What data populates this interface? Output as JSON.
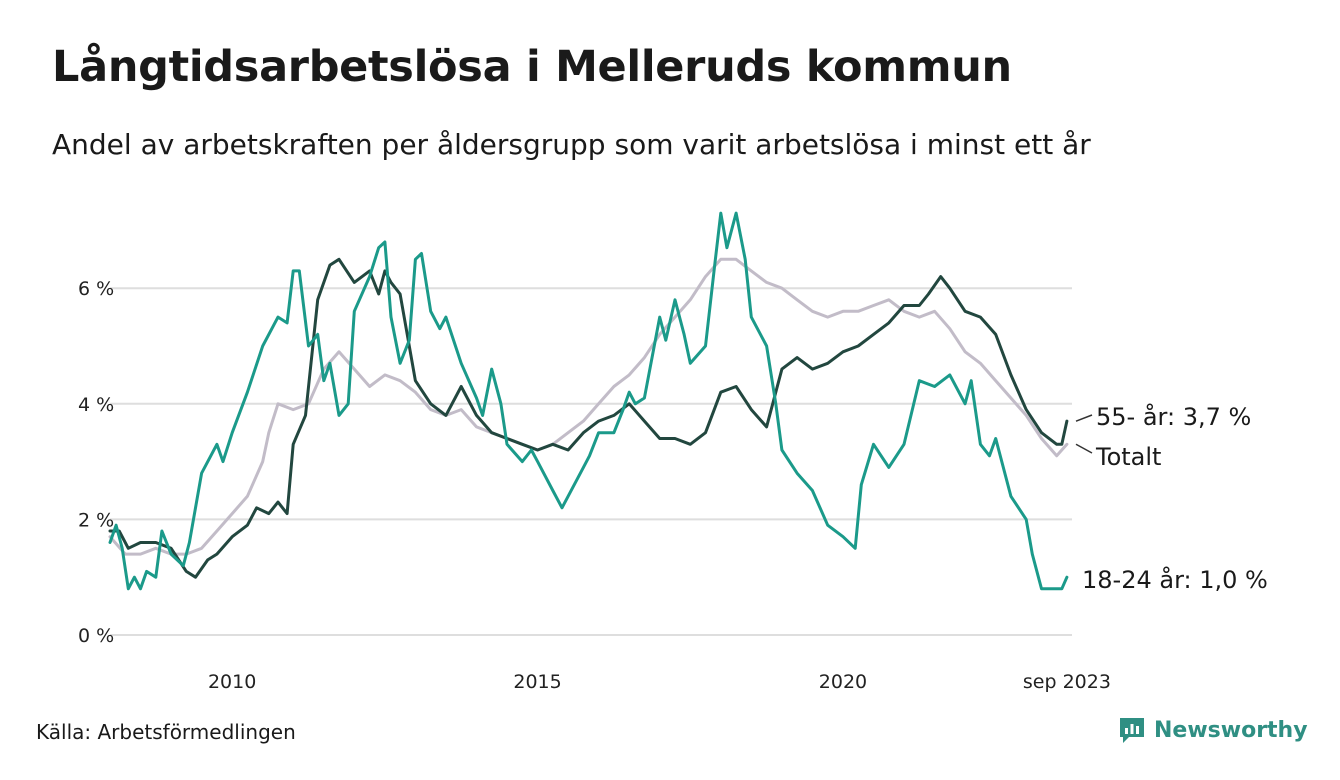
{
  "header": {
    "title": "Långtidsarbetslösa i Melleruds kommun",
    "subtitle": "Andel av arbetskraften per åldersgrupp som varit arbetslösa i minst ett år"
  },
  "footer": {
    "source": "Källa: Arbetsförmedlingen",
    "brand": "Newsworthy",
    "brand_icon": "newsworthy-logo-icon"
  },
  "colors": {
    "youth": "#1b9a8a",
    "senior": "#22473f",
    "total": "#c2bcc8",
    "grid": "#dedede",
    "brand": "#2f8f83"
  },
  "chart_data": {
    "type": "line",
    "title": "Långtidsarbetslösa i Melleruds kommun",
    "subtitle": "Andel av arbetskraften per åldersgrupp som varit arbetslösa i minst ett år",
    "xlabel": "",
    "ylabel": "",
    "x_unit": "year",
    "xlim": [
      2008.0,
      2023.75
    ],
    "ylim": [
      0,
      7.5
    ],
    "y_ticks": [
      0,
      2,
      4,
      6
    ],
    "y_tick_labels": [
      "0 %",
      "2 %",
      "4 %",
      "6 %"
    ],
    "x_ticks": [
      2010,
      2015,
      2020,
      2023.667
    ],
    "x_tick_labels": [
      "2010",
      "2015",
      "2020",
      "sep 2023"
    ],
    "grid": "horizontal",
    "series": [
      {
        "name": "Totalt",
        "end_label": "Totalt",
        "color": "#c2bcc8",
        "points": [
          [
            2008.0,
            1.7
          ],
          [
            2008.25,
            1.4
          ],
          [
            2008.5,
            1.4
          ],
          [
            2008.75,
            1.5
          ],
          [
            2009.0,
            1.4
          ],
          [
            2009.25,
            1.4
          ],
          [
            2009.5,
            1.5
          ],
          [
            2009.75,
            1.8
          ],
          [
            2010.0,
            2.1
          ],
          [
            2010.25,
            2.4
          ],
          [
            2010.5,
            3.0
          ],
          [
            2010.6,
            3.5
          ],
          [
            2010.75,
            4.0
          ],
          [
            2011.0,
            3.9
          ],
          [
            2011.25,
            4.0
          ],
          [
            2011.5,
            4.6
          ],
          [
            2011.75,
            4.9
          ],
          [
            2012.0,
            4.6
          ],
          [
            2012.25,
            4.3
          ],
          [
            2012.5,
            4.5
          ],
          [
            2012.75,
            4.4
          ],
          [
            2013.0,
            4.2
          ],
          [
            2013.25,
            3.9
          ],
          [
            2013.5,
            3.8
          ],
          [
            2013.75,
            3.9
          ],
          [
            2014.0,
            3.6
          ],
          [
            2014.25,
            3.5
          ],
          [
            2014.5,
            3.4
          ],
          [
            2014.75,
            3.3
          ],
          [
            2015.0,
            3.2
          ],
          [
            2015.25,
            3.3
          ],
          [
            2015.5,
            3.5
          ],
          [
            2015.75,
            3.7
          ],
          [
            2016.0,
            4.0
          ],
          [
            2016.25,
            4.3
          ],
          [
            2016.5,
            4.5
          ],
          [
            2016.75,
            4.8
          ],
          [
            2017.0,
            5.2
          ],
          [
            2017.25,
            5.5
          ],
          [
            2017.5,
            5.8
          ],
          [
            2017.75,
            6.2
          ],
          [
            2018.0,
            6.5
          ],
          [
            2018.25,
            6.5
          ],
          [
            2018.5,
            6.3
          ],
          [
            2018.75,
            6.1
          ],
          [
            2019.0,
            6.0
          ],
          [
            2019.25,
            5.8
          ],
          [
            2019.5,
            5.6
          ],
          [
            2019.75,
            5.5
          ],
          [
            2020.0,
            5.6
          ],
          [
            2020.25,
            5.6
          ],
          [
            2020.5,
            5.7
          ],
          [
            2020.75,
            5.8
          ],
          [
            2021.0,
            5.6
          ],
          [
            2021.25,
            5.5
          ],
          [
            2021.5,
            5.6
          ],
          [
            2021.75,
            5.3
          ],
          [
            2022.0,
            4.9
          ],
          [
            2022.25,
            4.7
          ],
          [
            2022.5,
            4.4
          ],
          [
            2022.75,
            4.1
          ],
          [
            2023.0,
            3.8
          ],
          [
            2023.25,
            3.4
          ],
          [
            2023.5,
            3.1
          ],
          [
            2023.667,
            3.3
          ]
        ],
        "last_value": 3.3
      },
      {
        "name": "55- år",
        "end_label": "55- år: 3,7 %",
        "color": "#22473f",
        "points": [
          [
            2008.0,
            1.8
          ],
          [
            2008.15,
            1.8
          ],
          [
            2008.3,
            1.5
          ],
          [
            2008.5,
            1.6
          ],
          [
            2008.75,
            1.6
          ],
          [
            2009.0,
            1.5
          ],
          [
            2009.25,
            1.1
          ],
          [
            2009.4,
            1.0
          ],
          [
            2009.6,
            1.3
          ],
          [
            2009.75,
            1.4
          ],
          [
            2010.0,
            1.7
          ],
          [
            2010.25,
            1.9
          ],
          [
            2010.4,
            2.2
          ],
          [
            2010.6,
            2.1
          ],
          [
            2010.75,
            2.3
          ],
          [
            2010.9,
            2.1
          ],
          [
            2011.0,
            3.3
          ],
          [
            2011.2,
            3.8
          ],
          [
            2011.4,
            5.8
          ],
          [
            2011.6,
            6.4
          ],
          [
            2011.75,
            6.5
          ],
          [
            2012.0,
            6.1
          ],
          [
            2012.25,
            6.3
          ],
          [
            2012.4,
            5.9
          ],
          [
            2012.5,
            6.3
          ],
          [
            2012.6,
            6.1
          ],
          [
            2012.75,
            5.9
          ],
          [
            2013.0,
            4.4
          ],
          [
            2013.25,
            4.0
          ],
          [
            2013.5,
            3.8
          ],
          [
            2013.75,
            4.3
          ],
          [
            2014.0,
            3.8
          ],
          [
            2014.25,
            3.5
          ],
          [
            2014.5,
            3.4
          ],
          [
            2014.75,
            3.3
          ],
          [
            2015.0,
            3.2
          ],
          [
            2015.25,
            3.3
          ],
          [
            2015.5,
            3.2
          ],
          [
            2015.75,
            3.5
          ],
          [
            2016.0,
            3.7
          ],
          [
            2016.25,
            3.8
          ],
          [
            2016.5,
            4.0
          ],
          [
            2016.75,
            3.7
          ],
          [
            2017.0,
            3.4
          ],
          [
            2017.25,
            3.4
          ],
          [
            2017.5,
            3.3
          ],
          [
            2017.75,
            3.5
          ],
          [
            2018.0,
            4.2
          ],
          [
            2018.25,
            4.3
          ],
          [
            2018.5,
            3.9
          ],
          [
            2018.75,
            3.6
          ],
          [
            2019.0,
            4.6
          ],
          [
            2019.25,
            4.8
          ],
          [
            2019.5,
            4.6
          ],
          [
            2019.75,
            4.7
          ],
          [
            2020.0,
            4.9
          ],
          [
            2020.25,
            5.0
          ],
          [
            2020.5,
            5.2
          ],
          [
            2020.75,
            5.4
          ],
          [
            2021.0,
            5.7
          ],
          [
            2021.25,
            5.7
          ],
          [
            2021.4,
            5.9
          ],
          [
            2021.6,
            6.2
          ],
          [
            2021.75,
            6.0
          ],
          [
            2022.0,
            5.6
          ],
          [
            2022.25,
            5.5
          ],
          [
            2022.5,
            5.2
          ],
          [
            2022.75,
            4.5
          ],
          [
            2023.0,
            3.9
          ],
          [
            2023.25,
            3.5
          ],
          [
            2023.5,
            3.3
          ],
          [
            2023.583,
            3.3
          ],
          [
            2023.667,
            3.7
          ]
        ],
        "last_value": 3.7
      },
      {
        "name": "18-24 år",
        "end_label": "18-24 år: 1,0 %",
        "color": "#1b9a8a",
        "points": [
          [
            2008.0,
            1.6
          ],
          [
            2008.1,
            1.9
          ],
          [
            2008.2,
            1.5
          ],
          [
            2008.3,
            0.8
          ],
          [
            2008.4,
            1.0
          ],
          [
            2008.5,
            0.8
          ],
          [
            2008.6,
            1.1
          ],
          [
            2008.75,
            1.0
          ],
          [
            2008.85,
            1.8
          ],
          [
            2009.0,
            1.4
          ],
          [
            2009.2,
            1.2
          ],
          [
            2009.3,
            1.6
          ],
          [
            2009.5,
            2.8
          ],
          [
            2009.75,
            3.3
          ],
          [
            2009.85,
            3.0
          ],
          [
            2010.0,
            3.5
          ],
          [
            2010.25,
            4.2
          ],
          [
            2010.5,
            5.0
          ],
          [
            2010.75,
            5.5
          ],
          [
            2010.9,
            5.4
          ],
          [
            2011.0,
            6.3
          ],
          [
            2011.1,
            6.3
          ],
          [
            2011.25,
            5.0
          ],
          [
            2011.4,
            5.2
          ],
          [
            2011.5,
            4.4
          ],
          [
            2011.6,
            4.7
          ],
          [
            2011.75,
            3.8
          ],
          [
            2011.9,
            4.0
          ],
          [
            2012.0,
            5.6
          ],
          [
            2012.25,
            6.2
          ],
          [
            2012.4,
            6.7
          ],
          [
            2012.5,
            6.8
          ],
          [
            2012.6,
            5.5
          ],
          [
            2012.75,
            4.7
          ],
          [
            2012.9,
            5.1
          ],
          [
            2013.0,
            6.5
          ],
          [
            2013.1,
            6.6
          ],
          [
            2013.25,
            5.6
          ],
          [
            2013.4,
            5.3
          ],
          [
            2013.5,
            5.5
          ],
          [
            2013.75,
            4.7
          ],
          [
            2014.0,
            4.1
          ],
          [
            2014.1,
            3.8
          ],
          [
            2014.25,
            4.6
          ],
          [
            2014.4,
            4.0
          ],
          [
            2014.5,
            3.3
          ],
          [
            2014.75,
            3.0
          ],
          [
            2014.9,
            3.2
          ],
          [
            2015.0,
            3.0
          ],
          [
            2015.25,
            2.5
          ],
          [
            2015.4,
            2.2
          ],
          [
            2015.5,
            2.4
          ],
          [
            2015.75,
            2.9
          ],
          [
            2015.85,
            3.1
          ],
          [
            2016.0,
            3.5
          ],
          [
            2016.25,
            3.5
          ],
          [
            2016.4,
            3.9
          ],
          [
            2016.5,
            4.2
          ],
          [
            2016.6,
            4.0
          ],
          [
            2016.75,
            4.1
          ],
          [
            2017.0,
            5.5
          ],
          [
            2017.1,
            5.1
          ],
          [
            2017.25,
            5.8
          ],
          [
            2017.4,
            5.2
          ],
          [
            2017.5,
            4.7
          ],
          [
            2017.75,
            5.0
          ],
          [
            2017.9,
            6.4
          ],
          [
            2018.0,
            7.3
          ],
          [
            2018.1,
            6.7
          ],
          [
            2018.25,
            7.3
          ],
          [
            2018.4,
            6.5
          ],
          [
            2018.5,
            5.5
          ],
          [
            2018.75,
            5.0
          ],
          [
            2018.9,
            4.0
          ],
          [
            2019.0,
            3.2
          ],
          [
            2019.25,
            2.8
          ],
          [
            2019.5,
            2.5
          ],
          [
            2019.75,
            1.9
          ],
          [
            2020.0,
            1.7
          ],
          [
            2020.2,
            1.5
          ],
          [
            2020.3,
            2.6
          ],
          [
            2020.5,
            3.3
          ],
          [
            2020.75,
            2.9
          ],
          [
            2021.0,
            3.3
          ],
          [
            2021.25,
            4.4
          ],
          [
            2021.5,
            4.3
          ],
          [
            2021.75,
            4.5
          ],
          [
            2022.0,
            4.0
          ],
          [
            2022.1,
            4.4
          ],
          [
            2022.25,
            3.3
          ],
          [
            2022.4,
            3.1
          ],
          [
            2022.5,
            3.4
          ],
          [
            2022.75,
            2.4
          ],
          [
            2023.0,
            2.0
          ],
          [
            2023.1,
            1.4
          ],
          [
            2023.25,
            0.8
          ],
          [
            2023.35,
            0.8
          ],
          [
            2023.5,
            0.8
          ],
          [
            2023.583,
            0.8
          ],
          [
            2023.667,
            1.0
          ]
        ],
        "last_value": 1.0
      }
    ]
  }
}
